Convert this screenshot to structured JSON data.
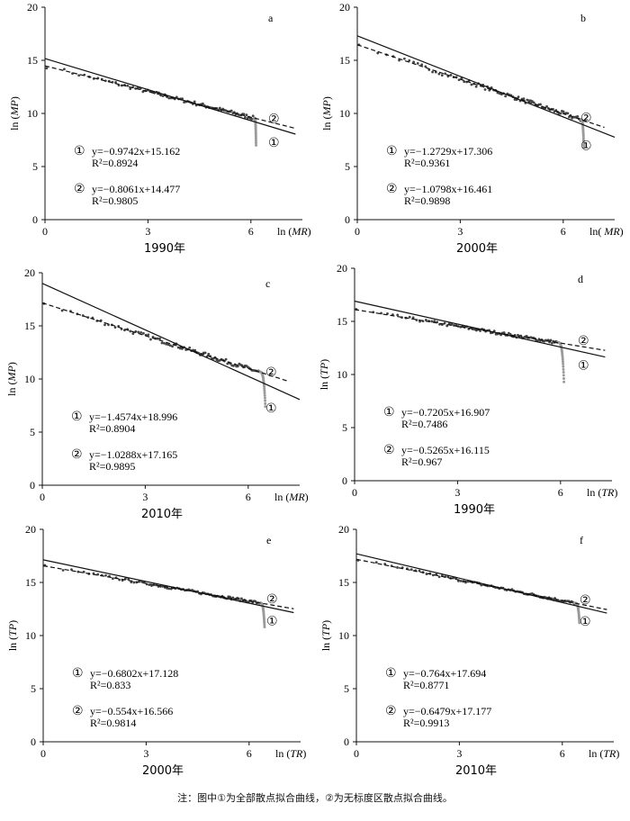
{
  "caption": "注：图中①为全部散点拟合曲线，②为无标度区散点拟合曲线。",
  "chart_data": [
    {
      "type": "scatter",
      "panel": "a",
      "year_label": "1990年",
      "ylabel_main": "ln (",
      "ylabel_var": "MP",
      "ylabel_close": ")",
      "xlabel_main": "ln (",
      "xlabel_var": "MR",
      "xlabel_close": ")",
      "xlim": [
        0,
        7.5
      ],
      "ylim": [
        0,
        20
      ],
      "xticks": [
        0,
        3,
        6
      ],
      "yticks": [
        0,
        5,
        10,
        15,
        20
      ],
      "line1": {
        "marker": "①",
        "equation": "y=−0.9742x+15.162",
        "r2": "R²=0.8924",
        "slope": -0.9742,
        "intercept": 15.162,
        "x_range": [
          0,
          7.3
        ]
      },
      "line2": {
        "marker": "②",
        "equation": "y=−0.8061x+14.477",
        "r2": "R²=0.9805",
        "slope": -0.8061,
        "intercept": 14.477,
        "x_range": [
          0,
          7.3
        ]
      },
      "points": {
        "x_start": 0.05,
        "x_scale_end": 6.1,
        "tail_end_x": 6.15,
        "tail_end_y": 7.0,
        "jitter": 0.35
      }
    },
    {
      "type": "scatter",
      "panel": "b",
      "year_label": "2000年",
      "ylabel_main": "ln (",
      "ylabel_var": "MP",
      "ylabel_close": ")",
      "xlabel_main": "ln( ",
      "xlabel_var": "MR",
      "xlabel_close": ")",
      "xlim": [
        0,
        7.5
      ],
      "ylim": [
        0,
        20
      ],
      "xticks": [
        0,
        3,
        6
      ],
      "yticks": [
        0,
        5,
        10,
        15,
        20
      ],
      "line1": {
        "marker": "①",
        "equation": "y=−1.2729x+17.306",
        "r2": "R²=0.9361",
        "slope": -1.2729,
        "intercept": 17.306,
        "x_range": [
          0,
          7.5
        ]
      },
      "line2": {
        "marker": "②",
        "equation": "y=−1.0798x+16.461",
        "r2": "R²=0.9898",
        "slope": -1.0798,
        "intercept": 16.461,
        "x_range": [
          0,
          7.2
        ]
      },
      "points": {
        "x_start": 0.05,
        "x_scale_end": 6.5,
        "tail_end_x": 6.6,
        "tail_end_y": 6.8,
        "jitter": 0.4
      }
    },
    {
      "type": "scatter",
      "panel": "c",
      "year_label": "2010年",
      "ylabel_main": "ln (",
      "ylabel_var": "MP",
      "ylabel_close": ")",
      "xlabel_main": "ln (",
      "xlabel_var": "MR",
      "xlabel_close": ")",
      "xlim": [
        0,
        7.5
      ],
      "ylim": [
        0,
        20
      ],
      "xticks": [
        0,
        3,
        6
      ],
      "yticks": [
        0,
        5,
        10,
        15,
        20
      ],
      "line1": {
        "marker": "①",
        "equation": "y=−1.4574x+18.996",
        "r2": "R²=0.8904",
        "slope": -1.4574,
        "intercept": 18.996,
        "x_range": [
          0,
          7.5
        ]
      },
      "line2": {
        "marker": "②",
        "equation": "y=−1.0288x+17.165",
        "r2": "R²=0.9895",
        "slope": -1.0288,
        "intercept": 17.165,
        "x_range": [
          0,
          7.2
        ]
      },
      "points": {
        "x_start": 0.05,
        "x_scale_end": 6.3,
        "tail_end_x": 6.5,
        "tail_end_y": 7.4,
        "jitter": 0.4
      }
    },
    {
      "type": "scatter",
      "panel": "d",
      "year_label": "1990年",
      "ylabel_main": "ln (",
      "ylabel_var": "TP",
      "ylabel_close": ")",
      "xlabel_main": "ln (",
      "xlabel_var": "TR",
      "xlabel_close": ")",
      "xlim": [
        0,
        7.5
      ],
      "ylim": [
        0,
        20
      ],
      "xticks": [
        0,
        3,
        6
      ],
      "yticks": [
        0,
        5,
        10,
        15,
        20
      ],
      "line1": {
        "marker": "①",
        "equation": "y=−0.7205x+16.907",
        "r2": "R²=0.7486",
        "slope": -0.7205,
        "intercept": 16.907,
        "x_range": [
          0,
          7.3
        ]
      },
      "line2": {
        "marker": "②",
        "equation": "y=−0.5265x+16.115",
        "r2": "R²=0.967",
        "slope": -0.5265,
        "intercept": 16.115,
        "x_range": [
          0,
          7.3
        ]
      },
      "points": {
        "x_start": 0.05,
        "x_scale_end": 5.9,
        "tail_end_x": 6.1,
        "tail_end_y": 9.3,
        "jitter": 0.3
      }
    },
    {
      "type": "scatter",
      "panel": "e",
      "year_label": "2000年",
      "ylabel_main": "ln (",
      "ylabel_var": "TP",
      "ylabel_close": ")",
      "xlabel_main": "ln (",
      "xlabel_var": "TR",
      "xlabel_close": ")",
      "xlim": [
        0,
        7.5
      ],
      "ylim": [
        0,
        20
      ],
      "xticks": [
        0,
        3,
        6
      ],
      "yticks": [
        0,
        5,
        10,
        15,
        20
      ],
      "line1": {
        "marker": "①",
        "equation": "y=−0.6802x+17.128",
        "r2": "R²=0.833",
        "slope": -0.6802,
        "intercept": 17.128,
        "x_range": [
          0,
          7.3
        ]
      },
      "line2": {
        "marker": "②",
        "equation": "y=−0.554x+16.566",
        "r2": "R²=0.9814",
        "slope": -0.554,
        "intercept": 16.566,
        "x_range": [
          0,
          7.3
        ]
      },
      "points": {
        "x_start": 0.05,
        "x_scale_end": 6.3,
        "tail_end_x": 6.45,
        "tail_end_y": 10.8,
        "jitter": 0.25
      }
    },
    {
      "type": "scatter",
      "panel": "f",
      "year_label": "2010年",
      "ylabel_main": "ln (",
      "ylabel_var": "TP",
      "ylabel_close": ")",
      "xlabel_main": "ln (",
      "xlabel_var": "TR",
      "xlabel_close": ")",
      "xlim": [
        0,
        7.5
      ],
      "ylim": [
        0,
        20
      ],
      "xticks": [
        0,
        3,
        6
      ],
      "yticks": [
        0,
        5,
        10,
        15,
        20
      ],
      "line1": {
        "marker": "①",
        "equation": "y=−0.764x+17.694",
        "r2": "R²=0.8771",
        "slope": -0.764,
        "intercept": 17.694,
        "x_range": [
          0,
          7.3
        ]
      },
      "line2": {
        "marker": "②",
        "equation": "y=−0.6479x+17.177",
        "r2": "R²=0.9913",
        "slope": -0.6479,
        "intercept": 17.177,
        "x_range": [
          0,
          7.3
        ]
      },
      "points": {
        "x_start": 0.05,
        "x_scale_end": 6.35,
        "tail_end_x": 6.5,
        "tail_end_y": 11.2,
        "jitter": 0.25
      }
    }
  ]
}
